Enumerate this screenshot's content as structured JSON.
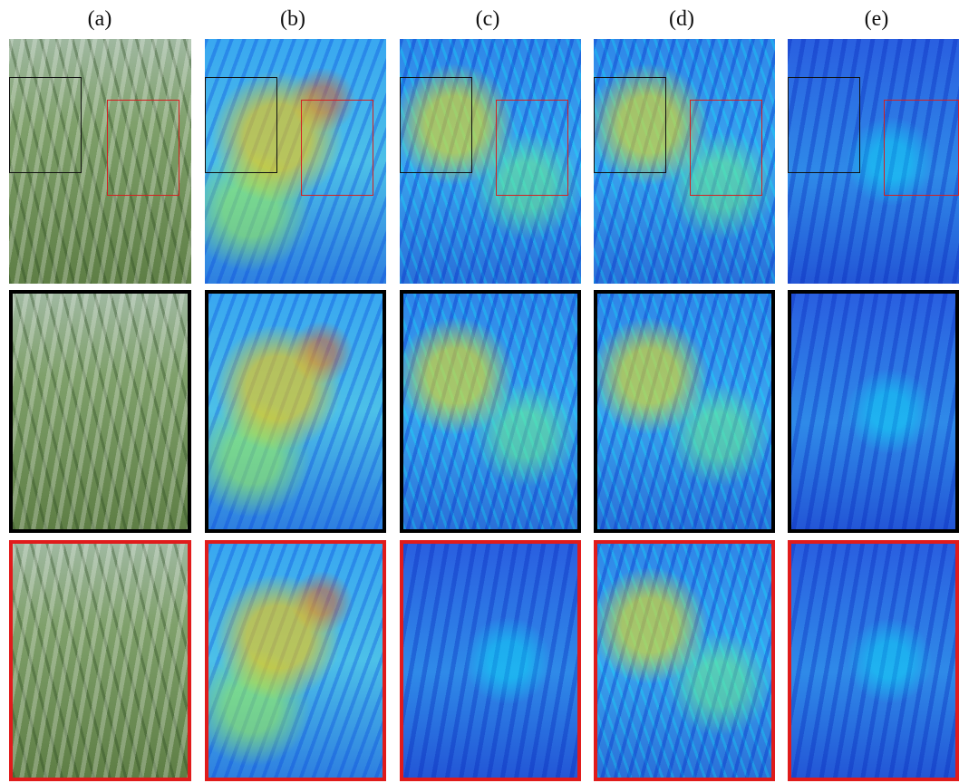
{
  "column_labels": [
    "(a)",
    "(b)",
    "(c)",
    "(d)",
    "(e)"
  ],
  "rows": [
    "full-view",
    "black-box-zoom",
    "red-box-zoom"
  ],
  "box_colors": {
    "black": "#111111",
    "red": "#d42020"
  },
  "panel_types": {
    "a": "photo",
    "b": "heatmap",
    "c": "heatmap",
    "d": "heatmap",
    "e": "heatmap"
  }
}
